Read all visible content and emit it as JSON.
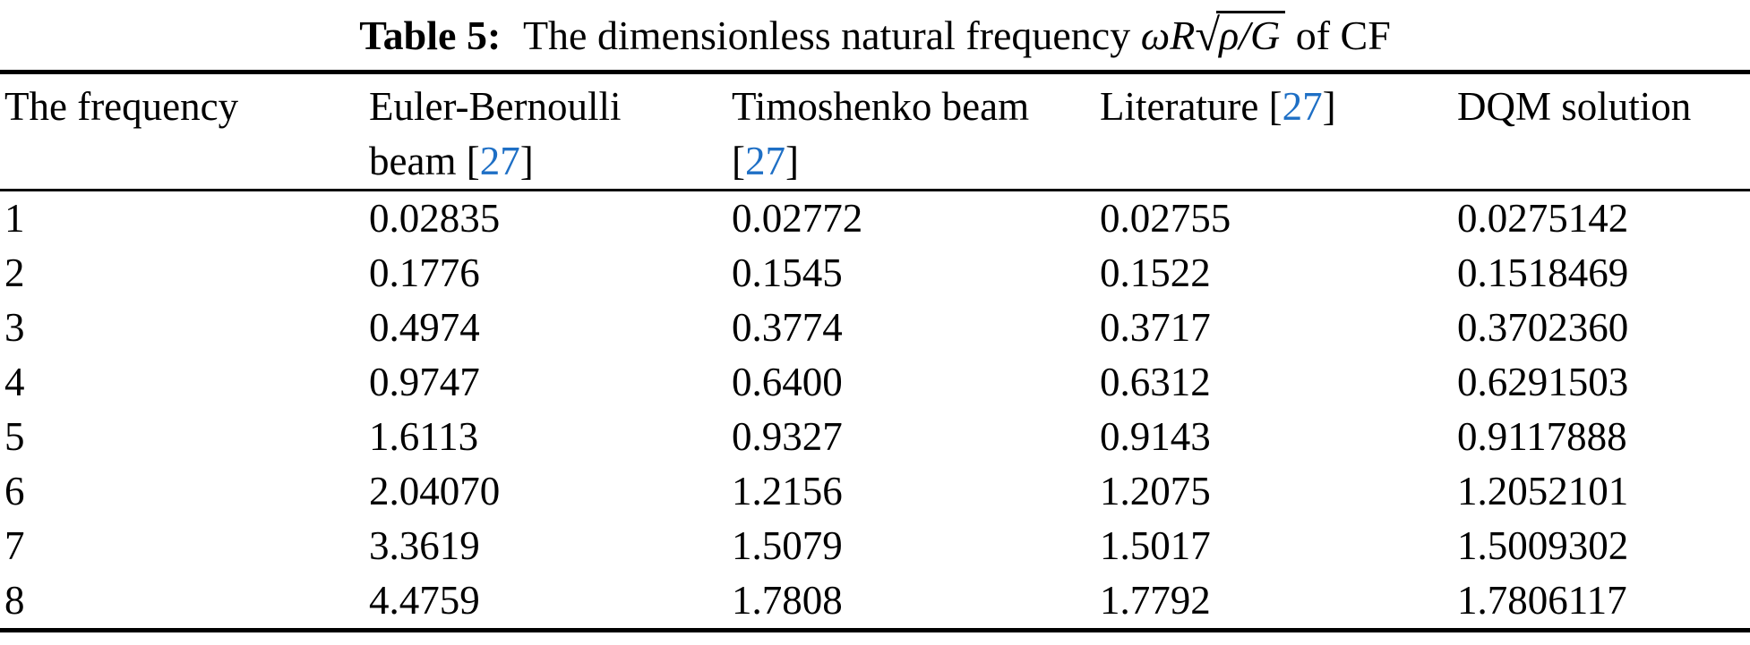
{
  "caption": {
    "label": "Table 5:",
    "text": "The dimensionless natural frequency",
    "math_prefix": "ωR",
    "radical_sign": "√",
    "math_radicand": "ρ/G",
    "suffix": "of CF"
  },
  "table": {
    "columns": [
      {
        "name": "the-frequency",
        "segments": [
          {
            "t": "The frequency"
          }
        ]
      },
      {
        "name": "euler-bernoulli-beam",
        "segments": [
          {
            "t": "Euler-Bernoulli"
          },
          {
            "t": "beam [",
            "break_before": true
          },
          {
            "t": "27",
            "cite": true
          },
          {
            "t": "]"
          }
        ]
      },
      {
        "name": "timoshenko-beam",
        "segments": [
          {
            "t": "Timoshenko beam"
          },
          {
            "t": "[",
            "break_before": true
          },
          {
            "t": "27",
            "cite": true
          },
          {
            "t": "]"
          }
        ]
      },
      {
        "name": "literature",
        "segments": [
          {
            "t": "Literature ["
          },
          {
            "t": "27",
            "cite": true
          },
          {
            "t": "]"
          }
        ]
      },
      {
        "name": "dqm-solution",
        "segments": [
          {
            "t": "DQM solution"
          }
        ]
      }
    ],
    "cell_names": [
      "frequency-cell",
      "euler-bernoulli-cell",
      "timoshenko-cell",
      "literature-cell",
      "dqm-cell"
    ],
    "rows": [
      [
        "1",
        "0.02835",
        "0.02772",
        "0.02755",
        "0.0275142"
      ],
      [
        "2",
        "0.1776",
        "0.1545",
        "0.1522",
        "0.1518469"
      ],
      [
        "3",
        "0.4974",
        "0.3774",
        "0.3717",
        "0.3702360"
      ],
      [
        "4",
        "0.9747",
        "0.6400",
        "0.6312",
        "0.6291503"
      ],
      [
        "5",
        "1.6113",
        "0.9327",
        "0.9143",
        "0.9117888"
      ],
      [
        "6",
        "2.04070",
        "1.2156",
        "1.2075",
        "1.2052101"
      ],
      [
        "7",
        "3.3619",
        "1.5079",
        "1.5017",
        "1.5009302"
      ],
      [
        "8",
        "4.4759",
        "1.7808",
        "1.7792",
        "1.7806117"
      ]
    ]
  },
  "colors": {
    "citation_link": "#1e6fc5",
    "text": "#000000",
    "rule": "#000000",
    "background": "#ffffff"
  }
}
